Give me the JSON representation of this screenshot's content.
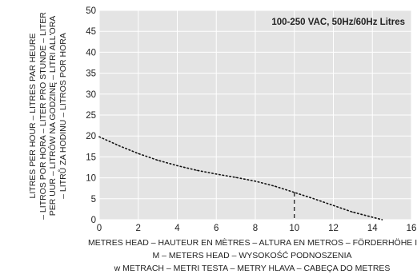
{
  "chart_data": {
    "type": "line",
    "title": "",
    "annotation": "100-250 VAC, 50Hz/60Hz Litres",
    "xlabel_lines": [
      "METRES HEAD – HAUTEUR EN MÈTRES – ALTURA EN METROS – FÖRDERHÖHE IN",
      "M – METERS HEAD – WYSOKOŚĆ PODNOSZENIA",
      "w METRACH – METRI TESTA – METRY HLAVA – CABEÇA DO METRES"
    ],
    "ylabel_lines": [
      "LITRES PER HOUR – LITRES PAR HEURE",
      "– LITROS POR HORA – LITER PRO STUNDE – LITER",
      "PER UUR – LITRÓW NA GODZINĘ – LITRI ALL'ORA",
      "– LITRŮ ZA HODINU – LITROS POR HORA"
    ],
    "xlim": [
      0,
      16
    ],
    "ylim": [
      0,
      50
    ],
    "xticks": [
      0,
      2,
      4,
      6,
      8,
      10,
      12,
      14,
      16
    ],
    "yticks": [
      0,
      5,
      10,
      15,
      20,
      25,
      30,
      35,
      40,
      45,
      50
    ],
    "grid": true,
    "series": [
      {
        "style": "dotted",
        "x": [
          0,
          1,
          2,
          3,
          4,
          5,
          6,
          7,
          8,
          9,
          10,
          11,
          12,
          13,
          14.5
        ],
        "y": [
          19.8,
          17.7,
          15.8,
          14.2,
          12.9,
          11.8,
          10.9,
          10.1,
          9.2,
          8.0,
          6.5,
          5.0,
          3.4,
          1.8,
          0
        ]
      }
    ],
    "marker_x": 10,
    "colors": {
      "plot_bg": "#e4e4e4",
      "grid": "#ffffff",
      "line": "#111111"
    }
  }
}
